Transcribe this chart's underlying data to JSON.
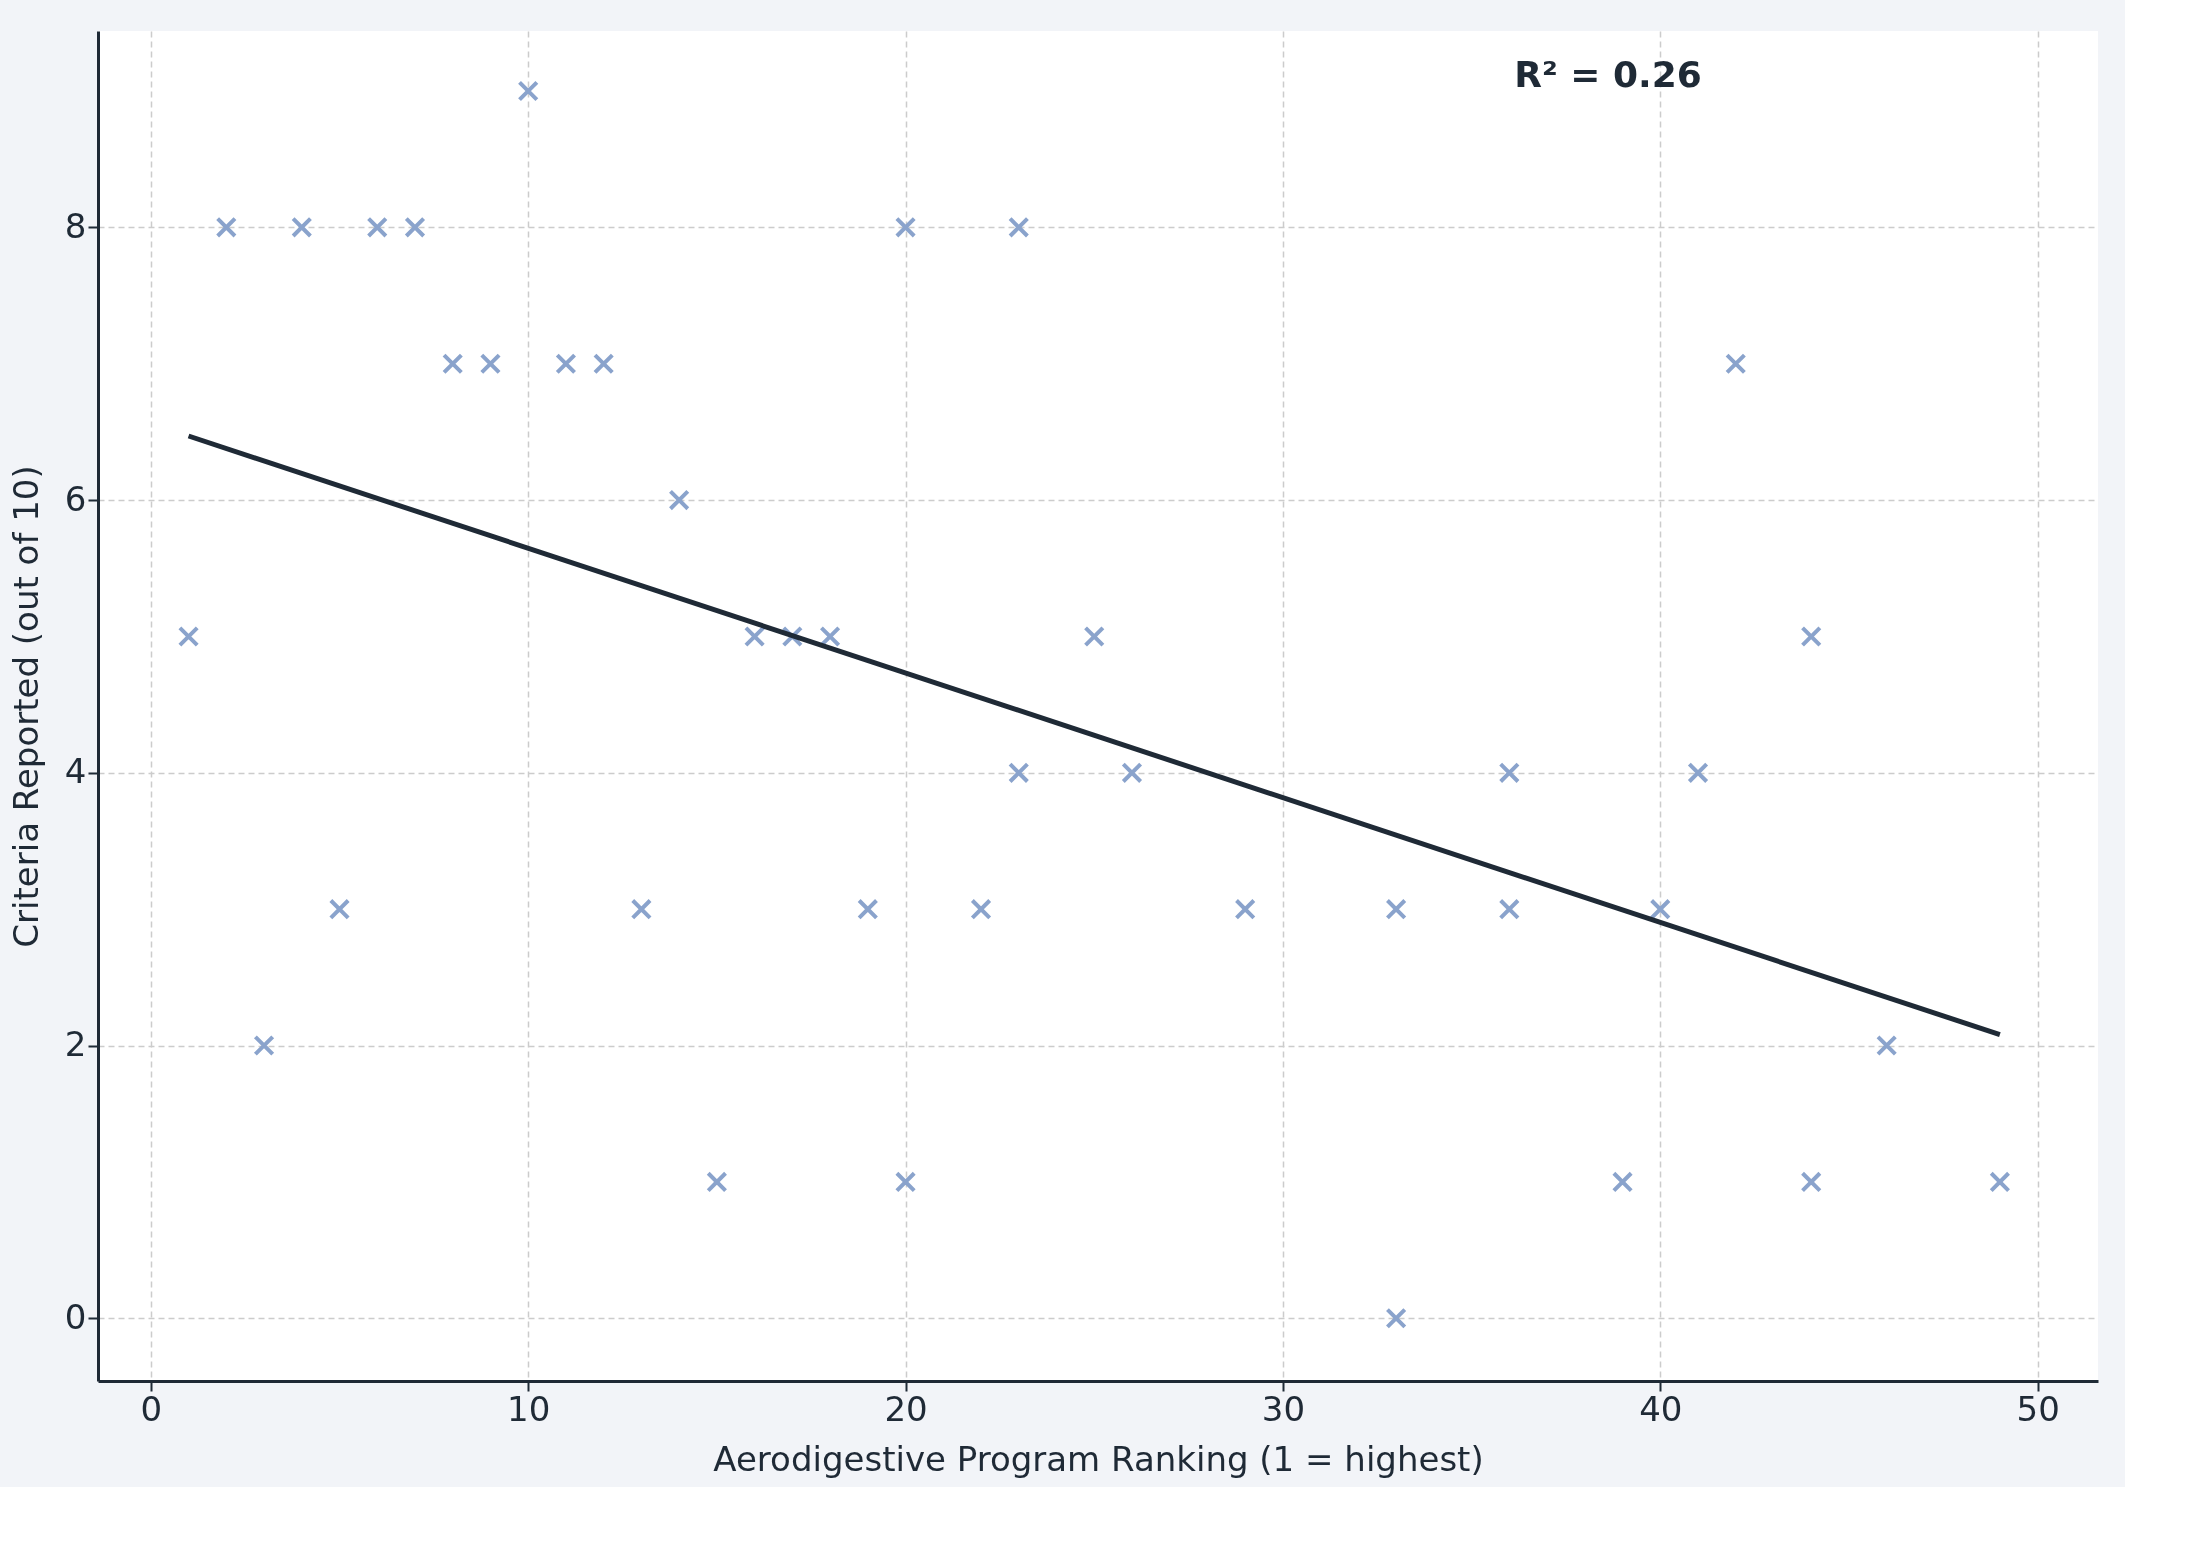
{
  "chart_data": {
    "type": "scatter",
    "xlabel": "Aerodigestive Program Ranking (1 = highest)",
    "ylabel": "Criteria Reported (out of 10)",
    "annotations": [
      "R² = 0.26"
    ],
    "xlim": [
      -1.4,
      51.6
    ],
    "ylim": [
      -0.46,
      9.44
    ],
    "xticks": [
      0,
      10,
      20,
      30,
      40,
      50
    ],
    "yticks": [
      0,
      2,
      4,
      6,
      8
    ],
    "grid": true,
    "series": [
      {
        "marker": "cross",
        "color": "#8aa3cc",
        "x": [
          1,
          2,
          3,
          4,
          5,
          6,
          7,
          8,
          9,
          10,
          11,
          12,
          13,
          14,
          15,
          16,
          17,
          18,
          19,
          20,
          20,
          22,
          23,
          23,
          25,
          26,
          29,
          33,
          33,
          36,
          36,
          39,
          40,
          41,
          42,
          44,
          44,
          46,
          49
        ],
        "values": [
          5,
          8,
          2,
          8,
          3,
          8,
          8,
          7,
          7,
          9,
          7,
          7,
          3,
          6,
          1,
          5,
          5,
          5,
          3,
          8,
          1,
          3,
          8,
          4,
          5,
          4,
          3,
          3,
          0,
          4,
          3,
          1,
          3,
          4,
          7,
          5,
          1,
          2,
          1
        ]
      },
      {
        "type": "line",
        "color": "#1f2a36",
        "x": [
          1,
          49
        ],
        "values": [
          6.47,
          2.08
        ]
      }
    ]
  }
}
